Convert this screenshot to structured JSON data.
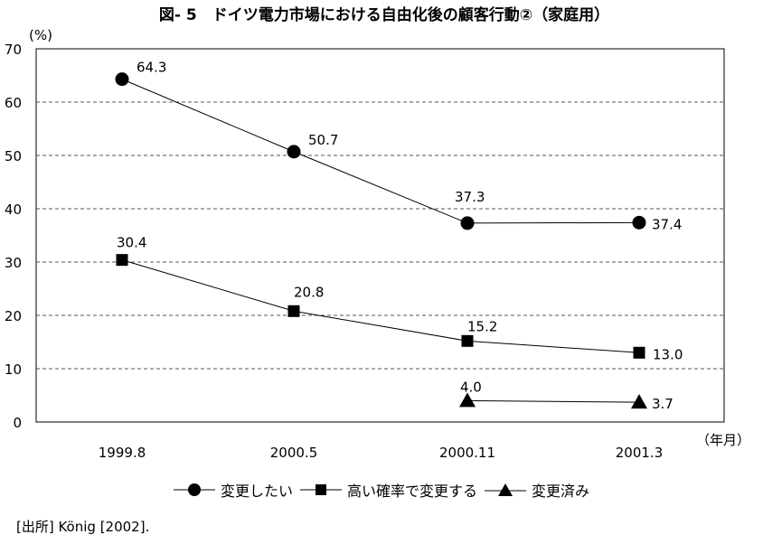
{
  "chart_data": {
    "type": "line",
    "title": "図- 5　ドイツ電力市場における自由化後の顧客行動②（家庭用）",
    "ylabel": "(%)",
    "xlabel": "（年月）",
    "categories": [
      "1999.8",
      "2000.5",
      "2000.11",
      "2001.3"
    ],
    "ylim": [
      0,
      70
    ],
    "yticks": [
      "0",
      "10",
      "20",
      "30",
      "40",
      "50",
      "60",
      "70"
    ],
    "grid": true,
    "legend_position": "bottom",
    "series": [
      {
        "name": "変更したい",
        "marker": "circle",
        "values": [
          64.3,
          50.7,
          37.3,
          37.4
        ],
        "labels": [
          "64.3",
          "50.7",
          "37.3",
          "37.4"
        ]
      },
      {
        "name": "高い確率で変更する",
        "marker": "square",
        "values": [
          30.4,
          20.8,
          15.2,
          13.0
        ],
        "labels": [
          "30.4",
          "20.8",
          "15.2",
          "13.0"
        ]
      },
      {
        "name": "変更済み",
        "marker": "triangle",
        "values": [
          null,
          null,
          4.0,
          3.7
        ],
        "labels": [
          null,
          null,
          "4.0",
          "3.7"
        ]
      }
    ]
  },
  "source": "[出所] König [2002]."
}
